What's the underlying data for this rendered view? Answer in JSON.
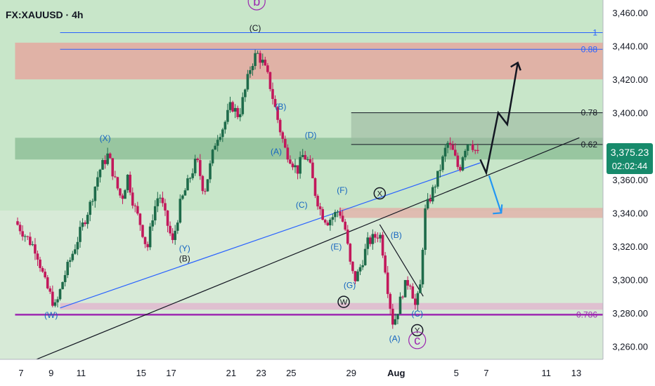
{
  "header": {
    "symbol_label": "FX:XAUUSD · 4h"
  },
  "price_badge": {
    "price": "3,375.23",
    "countdown": "02:02:44",
    "color": "#178a6b"
  },
  "colors": {
    "bull": "#1e6b4a",
    "bear": "#c2185b",
    "fib_blue": "#2962ff",
    "fib_purple": "#9c27b0",
    "wave_blue": "#1565c0",
    "zone_red": "#e8a09a",
    "zone_pink": "#e1b9cf",
    "zone_green": "#8fbf99",
    "background": "#c8e6c9"
  },
  "chart_data": {
    "type": "candlestick",
    "symbol": "FX:XAUUSD",
    "interval": "4h",
    "y_axis": {
      "range": [
        3250,
        3470
      ],
      "ticks": [
        3260,
        3280,
        3300,
        3320,
        3340,
        3360,
        3380,
        3400,
        3420,
        3440,
        3460
      ],
      "tick_labels": [
        "3,260.00",
        "3,280.00",
        "3,300.00",
        "3,320.00",
        "3,340.00",
        "3,360.00",
        "3,380.00",
        "3,400.00",
        "3,420.00",
        "3,440.00",
        "3,460.00"
      ]
    },
    "x_axis": {
      "range": [
        7,
        44.2
      ],
      "ticks": [
        {
          "day": 7,
          "label": "7",
          "bold": false
        },
        {
          "day": 9,
          "label": "9",
          "bold": false
        },
        {
          "day": 11,
          "label": "11",
          "bold": false
        },
        {
          "day": 15,
          "label": "15",
          "bold": false
        },
        {
          "day": 17,
          "label": "17",
          "bold": false
        },
        {
          "day": 21,
          "label": "21",
          "bold": false
        },
        {
          "day": 23,
          "label": "23",
          "bold": false
        },
        {
          "day": 25,
          "label": "25",
          "bold": false
        },
        {
          "day": 29,
          "label": "29",
          "bold": false
        },
        {
          "day": 32,
          "label": "Aug",
          "bold": true
        },
        {
          "day": 36,
          "label": "5",
          "bold": false
        },
        {
          "day": 38,
          "label": "7",
          "bold": false
        },
        {
          "day": 42,
          "label": "11",
          "bold": false
        },
        {
          "day": 44,
          "label": "13",
          "bold": false
        }
      ]
    },
    "price_path": [
      [
        6.6,
        3335
      ],
      [
        7.4,
        3325
      ],
      [
        8.0,
        3318
      ],
      [
        8.6,
        3298
      ],
      [
        9.3,
        3283
      ],
      [
        9.8,
        3300
      ],
      [
        10.4,
        3315
      ],
      [
        11.0,
        3330
      ],
      [
        11.6,
        3345
      ],
      [
        12.2,
        3365
      ],
      [
        12.8,
        3375
      ],
      [
        13.3,
        3358
      ],
      [
        13.7,
        3348
      ],
      [
        14.1,
        3362
      ],
      [
        14.5,
        3345
      ],
      [
        15.0,
        3332
      ],
      [
        15.4,
        3318
      ],
      [
        15.8,
        3340
      ],
      [
        16.2,
        3352
      ],
      [
        16.6,
        3338
      ],
      [
        17.1,
        3322
      ],
      [
        17.6,
        3345
      ],
      [
        18.2,
        3360
      ],
      [
        18.7,
        3372
      ],
      [
        19.2,
        3352
      ],
      [
        19.6,
        3368
      ],
      [
        20.0,
        3385
      ],
      [
        20.5,
        3392
      ],
      [
        21.0,
        3405
      ],
      [
        21.5,
        3398
      ],
      [
        21.9,
        3412
      ],
      [
        22.3,
        3428
      ],
      [
        22.7,
        3436
      ],
      [
        23.1,
        3430
      ],
      [
        23.5,
        3420
      ],
      [
        23.8,
        3408
      ],
      [
        24.2,
        3392
      ],
      [
        24.6,
        3378
      ],
      [
        25.0,
        3372
      ],
      [
        25.4,
        3365
      ],
      [
        25.8,
        3375
      ],
      [
        26.2,
        3370
      ],
      [
        26.6,
        3352
      ],
      [
        27.0,
        3340
      ],
      [
        27.4,
        3335
      ],
      [
        27.8,
        3338
      ],
      [
        28.2,
        3342
      ],
      [
        28.6,
        3330
      ],
      [
        29.0,
        3305
      ],
      [
        29.3,
        3300
      ],
      [
        29.7,
        3310
      ],
      [
        30.1,
        3322
      ],
      [
        30.5,
        3325
      ],
      [
        30.9,
        3328
      ],
      [
        31.2,
        3312
      ],
      [
        31.5,
        3290
      ],
      [
        31.8,
        3273
      ],
      [
        32.2,
        3285
      ],
      [
        32.5,
        3295
      ],
      [
        32.9,
        3300
      ],
      [
        33.3,
        3283
      ],
      [
        33.6,
        3296
      ],
      [
        33.9,
        3340
      ],
      [
        34.3,
        3350
      ],
      [
        34.7,
        3360
      ],
      [
        35.1,
        3372
      ],
      [
        35.4,
        3382
      ],
      [
        35.8,
        3376
      ],
      [
        36.2,
        3365
      ],
      [
        36.5,
        3378
      ],
      [
        36.9,
        3384
      ],
      [
        37.3,
        3377
      ],
      [
        37.6,
        3372
      ]
    ],
    "projection": [
      [
        37.6,
        3372
      ],
      [
        38.0,
        3364
      ],
      [
        38.8,
        3400
      ],
      [
        39.4,
        3393
      ],
      [
        40.1,
        3430
      ]
    ],
    "projection_arrow_down": [
      [
        38.0,
        3364
      ],
      [
        39.0,
        3340
      ]
    ],
    "horizontal_lines": [
      {
        "name": "fib-1",
        "price": 3448,
        "label": "1",
        "color": "#2962ff",
        "x_start": 9.6
      },
      {
        "name": "fib-088",
        "price": 3438,
        "label": "0.88",
        "color": "#2962ff",
        "x_start": 9.6
      },
      {
        "name": "fib-078",
        "price": 3400,
        "label": "0.78",
        "color": "#131722",
        "x_start": 29.0
      },
      {
        "name": "fib-062",
        "price": 3381,
        "label": "0.62",
        "color": "#131722",
        "x_start": 29.0
      },
      {
        "name": "fib-0786",
        "price": 3279,
        "label": "0.786",
        "color": "#9c27b0",
        "x_start": 6.6
      }
    ],
    "zones": [
      {
        "name": "resistance-zone",
        "y1": 3420,
        "y2": 3442,
        "x_start": 6.6,
        "color": "#e8a09a",
        "opacity": 0.75
      },
      {
        "name": "green-zone",
        "y1": 3372,
        "y2": 3385,
        "x_start": 6.6,
        "color": "#8fbf99",
        "opacity": 0.85
      },
      {
        "name": "sell-zone",
        "y1": 3381,
        "y2": 3400,
        "x_start": 29.0,
        "color": "#9bb8a0",
        "opacity": 0.6
      },
      {
        "name": "mid-zone",
        "y1": 3337,
        "y2": 3343,
        "x_start": 28.2,
        "color": "#e1b0a8",
        "opacity": 0.8
      },
      {
        "name": "support-zone",
        "y1": 3282,
        "y2": 3286,
        "x_start": 9.6,
        "color": "#e1b9cf",
        "opacity": 0.85
      }
    ],
    "trendlines": [
      {
        "name": "main-trendline",
        "color": "#131722",
        "points": [
          [
            6.6,
            3247
          ],
          [
            44.2,
            3385
          ]
        ]
      },
      {
        "name": "blue-channel",
        "color": "#2962ff",
        "points": [
          [
            9.6,
            3283
          ],
          [
            37.6,
            3370
          ]
        ]
      },
      {
        "name": "wedge-line",
        "color": "#131722",
        "points": [
          [
            30.9,
            3333
          ],
          [
            33.8,
            3290
          ]
        ]
      }
    ],
    "wave_labels": [
      {
        "text": "b",
        "day": 22.7,
        "price": 3465,
        "style": "circle-purple"
      },
      {
        "text": "(C)",
        "day": 22.6,
        "price": 3449,
        "style": "black"
      },
      {
        "text": "(B)",
        "day": 24.3,
        "price": 3402,
        "style": "blue"
      },
      {
        "text": "(D)",
        "day": 26.3,
        "price": 3385,
        "style": "blue"
      },
      {
        "text": "(X)",
        "day": 12.6,
        "price": 3383,
        "style": "blue"
      },
      {
        "text": "(A)",
        "day": 24.0,
        "price": 3375,
        "style": "blue"
      },
      {
        "text": "(C)",
        "day": 25.7,
        "price": 3343,
        "style": "blue"
      },
      {
        "text": "(F)",
        "day": 28.4,
        "price": 3352,
        "style": "blue"
      },
      {
        "text": "X",
        "day": 30.9,
        "price": 3350,
        "style": "circle-black"
      },
      {
        "text": "(B)",
        "day": 32.0,
        "price": 3325,
        "style": "blue"
      },
      {
        "text": "(E)",
        "day": 28.0,
        "price": 3318,
        "style": "blue"
      },
      {
        "text": "(Y)",
        "day": 17.9,
        "price": 3317,
        "style": "blue"
      },
      {
        "text": "(B)",
        "day": 17.9,
        "price": 3311,
        "style": "black"
      },
      {
        "text": "(G)",
        "day": 28.9,
        "price": 3295,
        "style": "blue"
      },
      {
        "text": "W",
        "day": 28.5,
        "price": 3285,
        "style": "circle-black"
      },
      {
        "text": "(C)",
        "day": 33.4,
        "price": 3278,
        "style": "blue"
      },
      {
        "text": "(W)",
        "day": 9.0,
        "price": 3277,
        "style": "blue"
      },
      {
        "text": "Y",
        "day": 33.4,
        "price": 3268,
        "style": "circle-black"
      },
      {
        "text": "(A)",
        "day": 31.9,
        "price": 3263,
        "style": "blue"
      },
      {
        "text": "c",
        "day": 33.4,
        "price": 3262,
        "style": "circle-purple"
      }
    ]
  }
}
